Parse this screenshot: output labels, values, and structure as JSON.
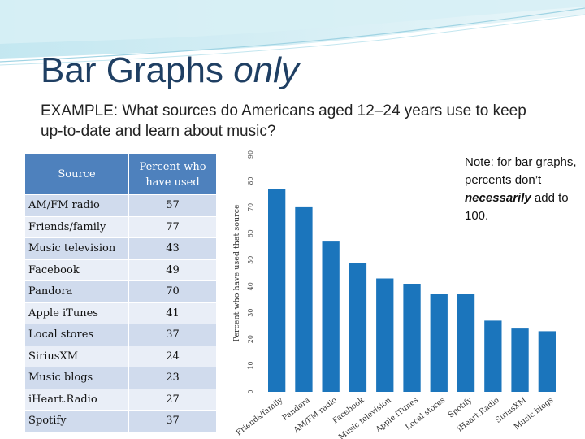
{
  "slide": {
    "title_main": "Bar Graphs",
    "title_emph": "only",
    "example_text": "EXAMPLE: What sources do Americans aged 12–24 years use to keep up-to-date and learn about music?"
  },
  "table": {
    "headers": [
      "Source",
      "Percent who have used"
    ],
    "rows": [
      [
        "AM/FM radio",
        "57"
      ],
      [
        "Friends/family",
        "77"
      ],
      [
        "Music television",
        "43"
      ],
      [
        "Facebook",
        "49"
      ],
      [
        "Pandora",
        "70"
      ],
      [
        "Apple iTunes",
        "41"
      ],
      [
        "Local stores",
        "37"
      ],
      [
        "SiriusXM",
        "24"
      ],
      [
        "Music blogs",
        "23"
      ],
      [
        "iHeart.Radio",
        "27"
      ],
      [
        "Spotify",
        "37"
      ]
    ]
  },
  "note": {
    "part1": "Note: for bar graphs, percents don’t ",
    "emph": "necessarily",
    "part2": " add to 100."
  },
  "colors": {
    "bar": "#1b75bc",
    "title": "#1f3f63",
    "table_header": "#4e81bd"
  },
  "chart_data": {
    "type": "bar",
    "categories": [
      "Friends/family",
      "Pandora",
      "AM/FM radio",
      "Facebook",
      "Music television",
      "Apple iTunes",
      "Local stores",
      "Spotify",
      "iHeart.Radio",
      "SiriusXM",
      "Music blogs"
    ],
    "values": [
      77,
      70,
      57,
      49,
      43,
      41,
      37,
      37,
      27,
      24,
      23
    ],
    "title": "",
    "xlabel": "",
    "ylabel": "Percent who have used that source",
    "ylim": [
      0,
      90
    ],
    "yticks": [
      0,
      10,
      20,
      30,
      40,
      50,
      60,
      70,
      80,
      90
    ],
    "grid": false,
    "legend": "none"
  }
}
